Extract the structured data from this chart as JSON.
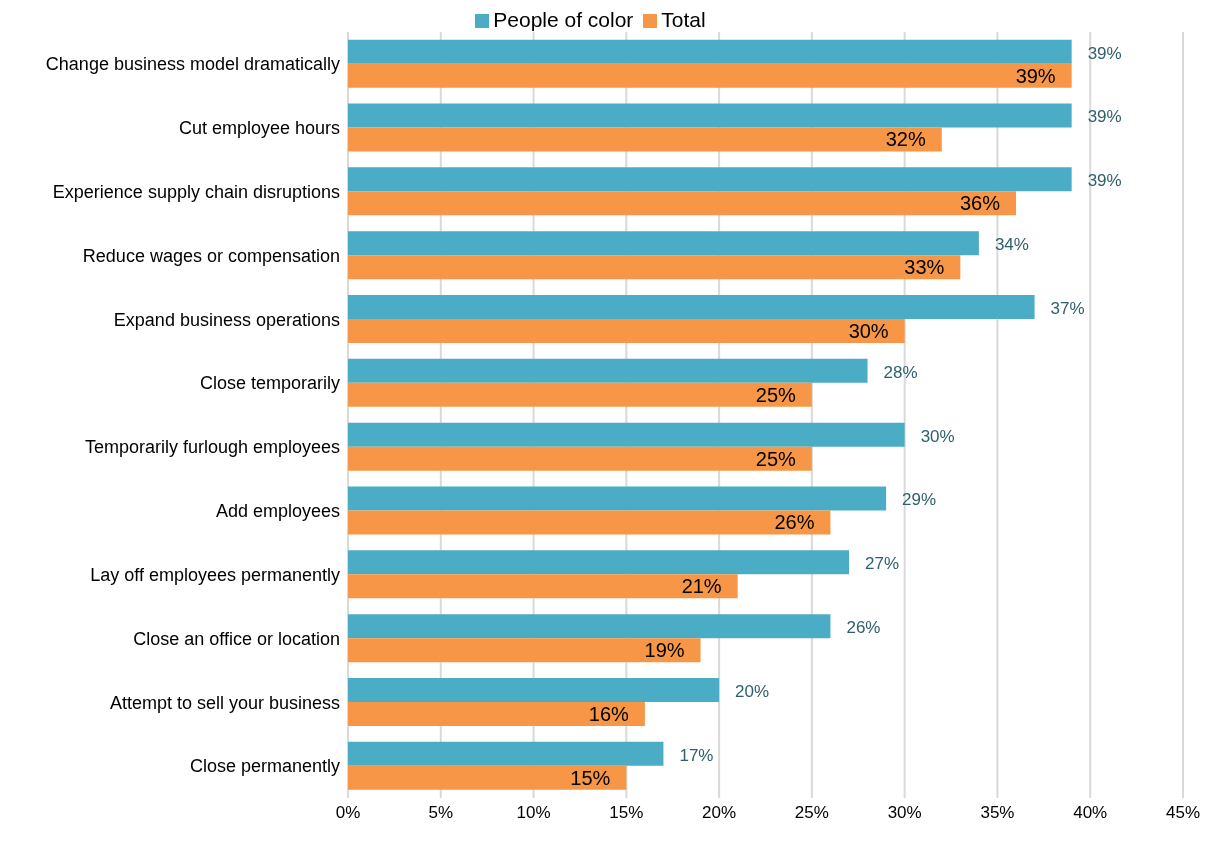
{
  "chart_data": {
    "type": "bar",
    "orientation": "horizontal",
    "categories": [
      "Change business model dramatically",
      "Cut employee hours",
      "Experience supply chain disruptions",
      "Reduce wages or compensation",
      "Expand business operations",
      "Close temporarily",
      "Temporarily furlough employees",
      "Add employees",
      "Lay off employees permanently",
      "Close an office or location",
      "Attempt to sell your business",
      "Close permanently"
    ],
    "series": [
      {
        "name": "People of color",
        "color": "#4bacc6",
        "values": [
          39,
          39,
          39,
          34,
          37,
          28,
          30,
          29,
          27,
          26,
          20,
          17
        ],
        "value_labels": [
          "39%",
          "39%",
          "39%",
          "34%",
          "37%",
          "28%",
          "30%",
          "29%",
          "27%",
          "26%",
          "20%",
          "17%"
        ]
      },
      {
        "name": "Total",
        "color": "#f79646",
        "values": [
          39,
          32,
          36,
          33,
          30,
          25,
          25,
          26,
          21,
          19,
          16,
          15
        ],
        "value_labels": [
          "39%",
          "32%",
          "36%",
          "33%",
          "30%",
          "25%",
          "25%",
          "26%",
          "21%",
          "19%",
          "16%",
          "15%"
        ]
      }
    ],
    "xlim": [
      0,
      45
    ],
    "xticks": [
      {
        "value": 0,
        "label": "0%"
      },
      {
        "value": 5,
        "label": "5%"
      },
      {
        "value": 10,
        "label": "10%"
      },
      {
        "value": 15,
        "label": "15%"
      },
      {
        "value": 20,
        "label": "20%"
      },
      {
        "value": 25,
        "label": "25%"
      },
      {
        "value": 30,
        "label": "30%"
      },
      {
        "value": 35,
        "label": "35%"
      },
      {
        "value": 40,
        "label": "40%"
      },
      {
        "value": 45,
        "label": "45%"
      }
    ],
    "grid": "x",
    "legend": "top"
  }
}
